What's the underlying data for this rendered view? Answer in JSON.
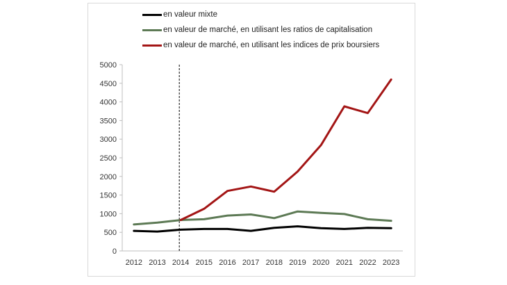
{
  "chart_data": {
    "type": "line",
    "title": "",
    "xlabel": "",
    "ylabel": "",
    "x": [
      "2012",
      "2013",
      "2014",
      "2015",
      "2016",
      "2017",
      "2018",
      "2019",
      "2020",
      "2021",
      "2022",
      "2023"
    ],
    "ylim": [
      0,
      5000
    ],
    "yticks": [
      0,
      500,
      1000,
      1500,
      2000,
      2500,
      3000,
      3500,
      4000,
      4500,
      5000
    ],
    "grid": false,
    "legend_position": "top",
    "reference_line": {
      "x": "2014",
      "style": "dotted",
      "color": "#000000"
    },
    "series": [
      {
        "name": "en valeur mixte",
        "color": "#000000",
        "values": [
          540,
          520,
          570,
          590,
          590,
          540,
          620,
          660,
          610,
          590,
          620,
          610
        ]
      },
      {
        "name": "en valeur de marché, en utilisant les ratios de capitalisation",
        "color": "#5d7a55",
        "values": [
          710,
          760,
          830,
          850,
          950,
          980,
          880,
          1060,
          1020,
          990,
          850,
          810
        ]
      },
      {
        "name": "en valeur de marché, en utilisant les indices de prix boursiers",
        "color": "#a31515",
        "values": [
          null,
          null,
          830,
          1130,
          1610,
          1730,
          1590,
          2130,
          2840,
          3880,
          3700,
          4600
        ]
      }
    ]
  }
}
